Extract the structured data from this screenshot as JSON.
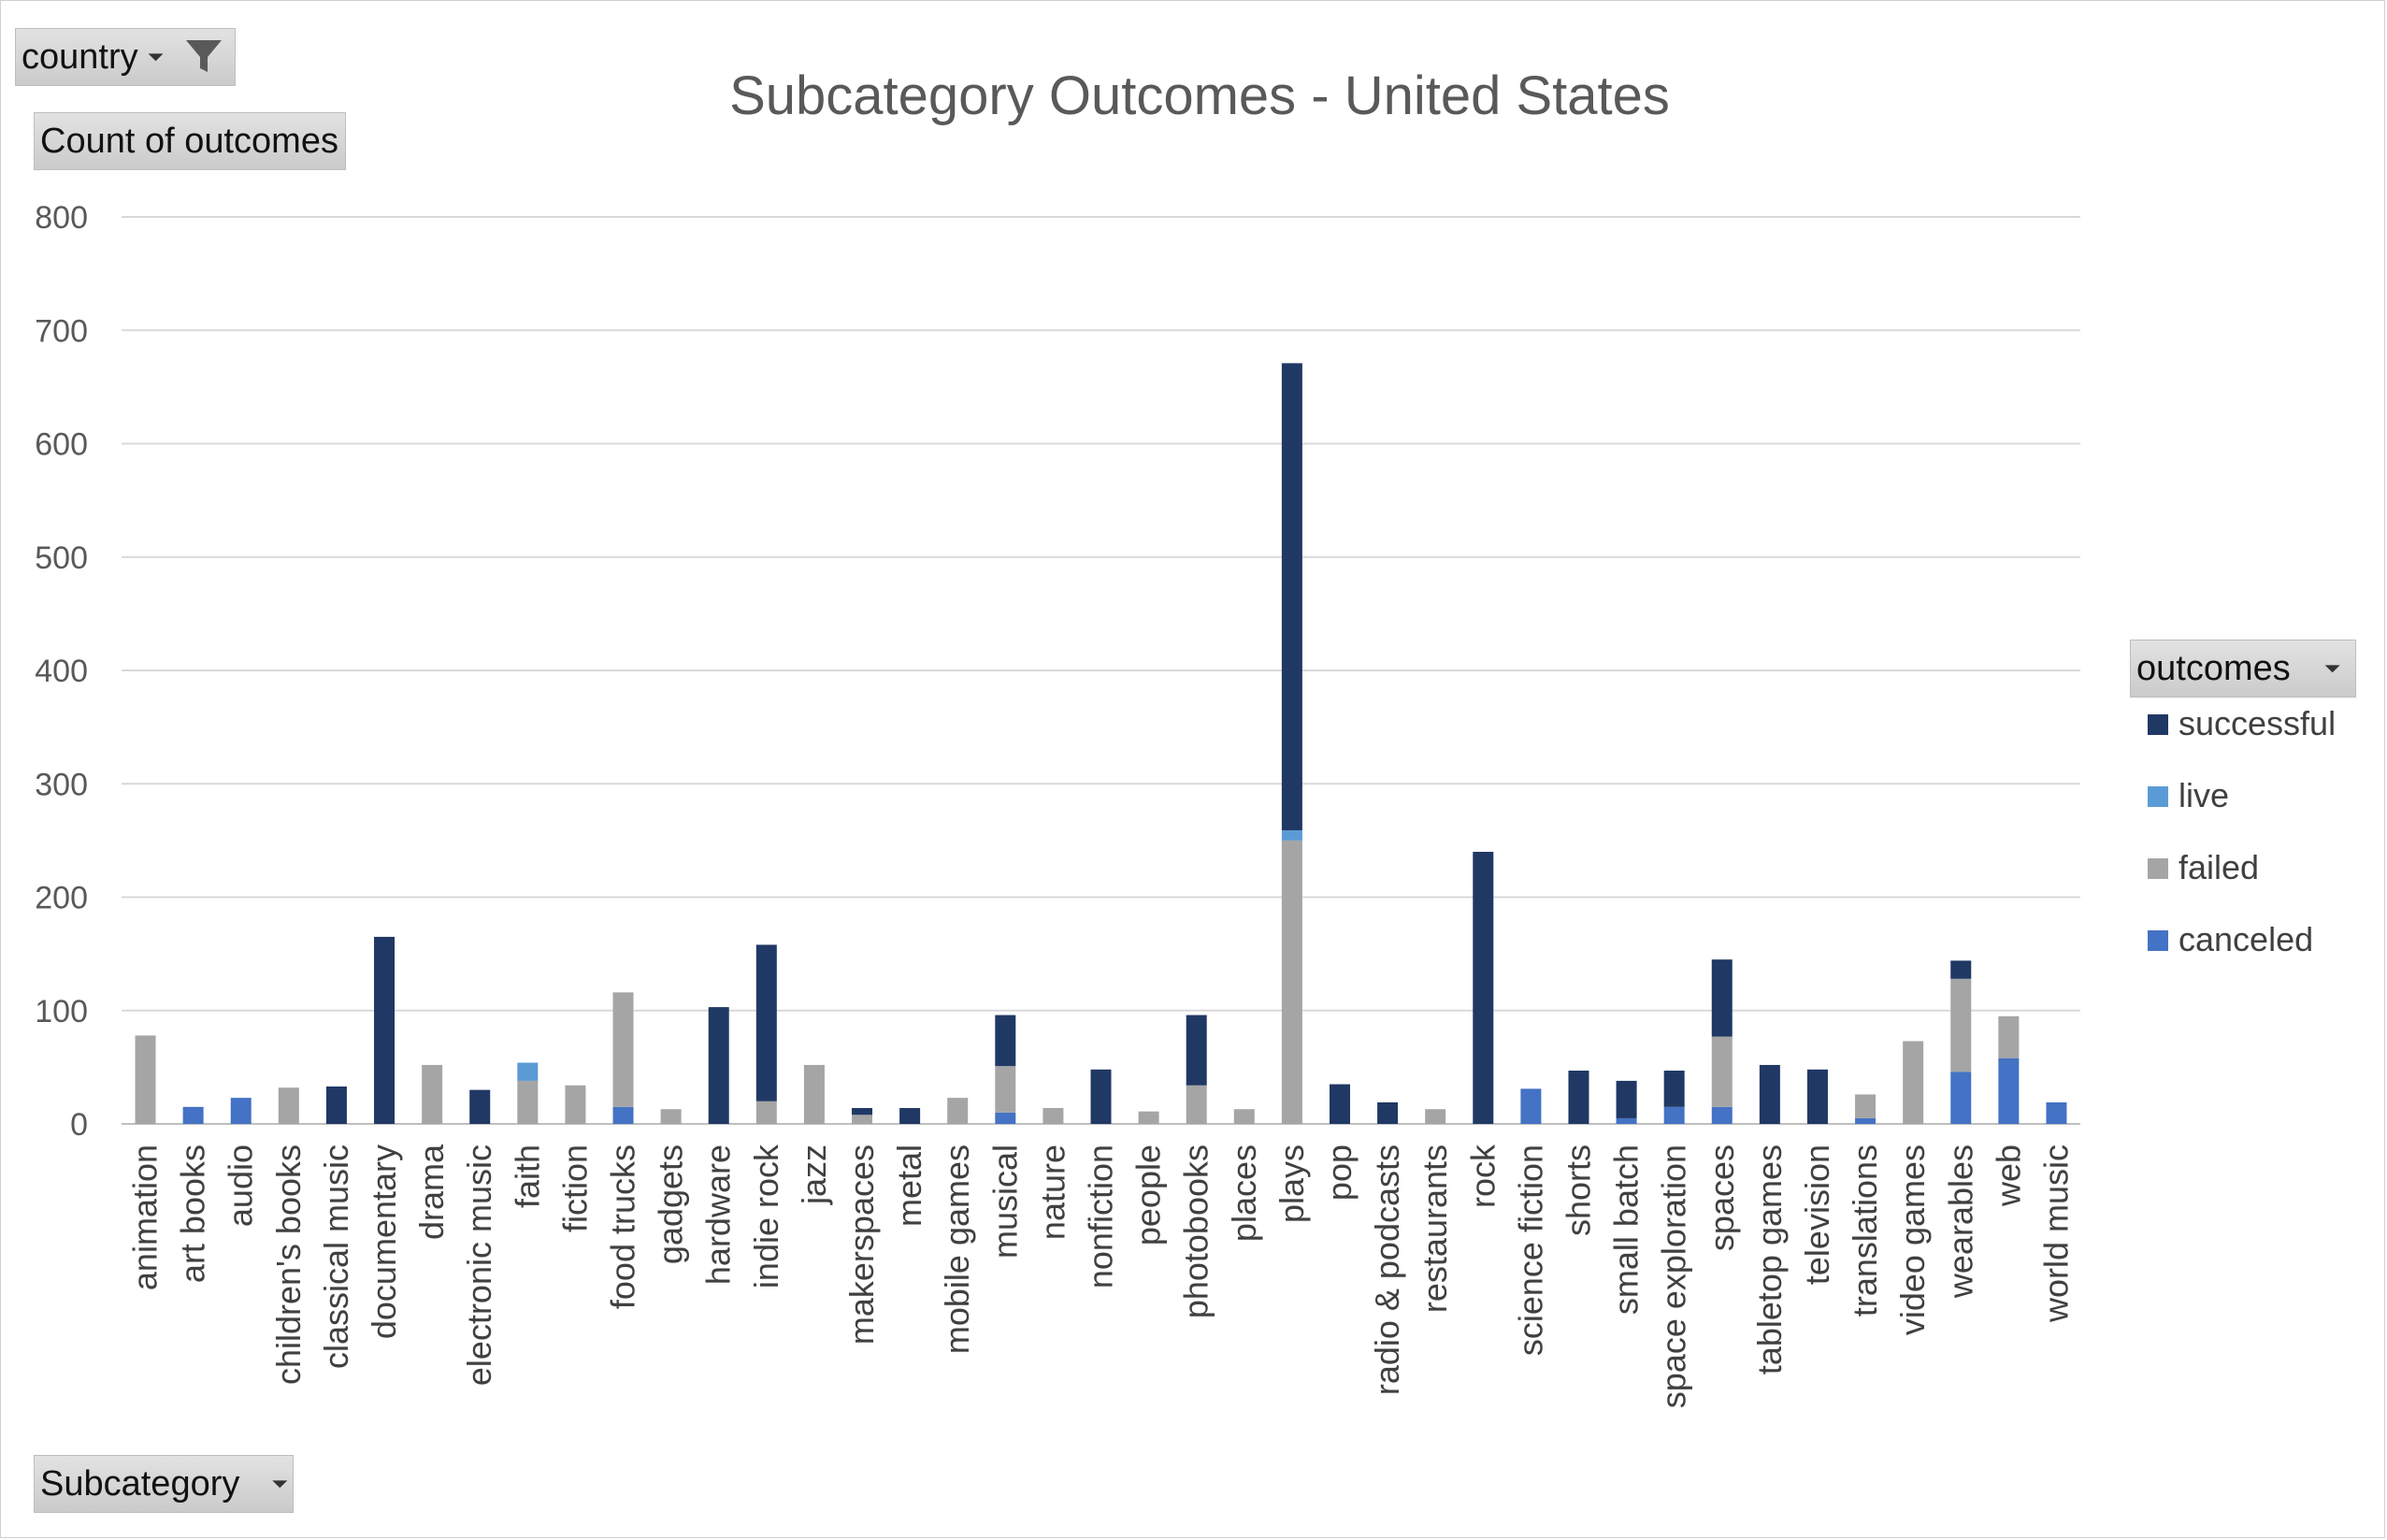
{
  "filters": {
    "country_label": "country",
    "values_label": "Count of outcomes",
    "legend_header": "outcomes",
    "axis_field_label": "Subcategory"
  },
  "colors": {
    "successful": "#203864",
    "live": "#5b9bd5",
    "failed": "#a5a5a5",
    "canceled": "#4472c4",
    "grid": "#d9d9d9"
  },
  "chart_data": {
    "type": "bar",
    "stacked": true,
    "title": "Subcategory Outcomes - United States",
    "xlabel": "",
    "ylabel": "",
    "ylim": [
      0,
      800
    ],
    "yticks": [
      0,
      100,
      200,
      300,
      400,
      500,
      600,
      700,
      800
    ],
    "grid": true,
    "legend_position": "right",
    "categories": [
      "animation",
      "art books",
      "audio",
      "children's books",
      "classical music",
      "documentary",
      "drama",
      "electronic music",
      "faith",
      "fiction",
      "food trucks",
      "gadgets",
      "hardware",
      "indie rock",
      "jazz",
      "makerspaces",
      "metal",
      "mobile games",
      "musical",
      "nature",
      "nonfiction",
      "people",
      "photobooks",
      "places",
      "plays",
      "pop",
      "radio & podcasts",
      "restaurants",
      "rock",
      "science fiction",
      "shorts",
      "small batch",
      "space exploration",
      "spaces",
      "tabletop games",
      "television",
      "translations",
      "video games",
      "wearables",
      "web",
      "world music"
    ],
    "series": [
      {
        "name": "canceled",
        "color": "#4472c4",
        "values": [
          0,
          15,
          23,
          0,
          0,
          0,
          0,
          0,
          0,
          0,
          15,
          0,
          0,
          0,
          0,
          0,
          0,
          0,
          10,
          0,
          0,
          0,
          0,
          0,
          0,
          0,
          0,
          0,
          0,
          31,
          0,
          5,
          15,
          15,
          0,
          0,
          5,
          0,
          46,
          58,
          19
        ]
      },
      {
        "name": "failed",
        "color": "#a5a5a5",
        "values": [
          78,
          0,
          0,
          32,
          0,
          0,
          52,
          0,
          38,
          34,
          101,
          13,
          0,
          20,
          52,
          8,
          0,
          23,
          41,
          14,
          0,
          11,
          34,
          13,
          250,
          0,
          0,
          13,
          0,
          0,
          0,
          0,
          0,
          62,
          0,
          0,
          21,
          73,
          82,
          37,
          0
        ]
      },
      {
        "name": "live",
        "color": "#5b9bd5",
        "values": [
          0,
          0,
          0,
          0,
          0,
          0,
          0,
          0,
          16,
          0,
          0,
          0,
          0,
          0,
          0,
          0,
          0,
          0,
          0,
          0,
          0,
          0,
          0,
          0,
          9,
          0,
          0,
          0,
          0,
          0,
          0,
          0,
          0,
          0,
          0,
          0,
          0,
          0,
          0,
          0,
          0
        ]
      },
      {
        "name": "successful",
        "color": "#203864",
        "values": [
          0,
          0,
          0,
          0,
          33,
          165,
          0,
          30,
          0,
          0,
          0,
          0,
          103,
          138,
          0,
          6,
          14,
          0,
          45,
          0,
          48,
          0,
          62,
          0,
          412,
          35,
          19,
          0,
          240,
          0,
          47,
          33,
          32,
          68,
          52,
          48,
          0,
          0,
          16,
          0,
          0
        ]
      }
    ],
    "legend_order": [
      "successful",
      "live",
      "failed",
      "canceled"
    ]
  }
}
